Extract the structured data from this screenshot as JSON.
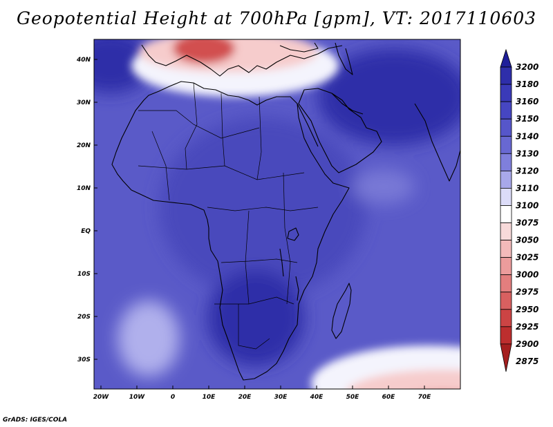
{
  "title": "Geopotential Height at 700hPa [gpm], VT: 2017110603",
  "credit": "GrADS: IGES/COLA",
  "lon_ticks": [
    "20W",
    "10W",
    "0",
    "10E",
    "20E",
    "30E",
    "40E",
    "50E",
    "60E",
    "70E"
  ],
  "lat_ticks": [
    "40N",
    "30N",
    "20N",
    "10N",
    "EQ",
    "10S",
    "20S",
    "30S"
  ],
  "colorbar": {
    "levels": [
      "3200",
      "3180",
      "3160",
      "3150",
      "3140",
      "3130",
      "3120",
      "3110",
      "3100",
      "3075",
      "3050",
      "3025",
      "3000",
      "2975",
      "2950",
      "2925",
      "2900",
      "2875"
    ],
    "colors": [
      "#1f1f9a",
      "#2e2eaa",
      "#3a3ab8",
      "#4646c2",
      "#5656ca",
      "#6868d2",
      "#7f7fdc",
      "#a8a8ea",
      "#dcdcf8",
      "#ffffff",
      "#f8dada",
      "#f3baba",
      "#ec9c9c",
      "#e37e7e",
      "#d86060",
      "#cc4444",
      "#bd2e2e",
      "#a51f1f"
    ]
  },
  "palette": {
    "ocean": "#5a5ac8",
    "land": "#4848bc",
    "high": "#2e2ea8",
    "light": "#7878d6",
    "pale": "#b0b0ec",
    "white": "#f4f4fd",
    "pink": "#f6cccc",
    "red": "#e68888",
    "deepred": "#d25050"
  },
  "chart_data": {
    "type": "heatmap",
    "title": "Geopotential Height at 700hPa [gpm], VT: 2017110603",
    "variable": "Geopotential Height at 700hPa",
    "units": "gpm",
    "valid_time": "2017110603",
    "domain": {
      "lon_range": [
        -22,
        80
      ],
      "lat_range": [
        -37,
        45
      ]
    },
    "contour_levels": [
      2875,
      2900,
      2925,
      2950,
      2975,
      3000,
      3025,
      3050,
      3075,
      3100,
      3110,
      3120,
      3130,
      3140,
      3150,
      3160,
      3180,
      3200
    ],
    "xlabel": "",
    "ylabel": ""
  }
}
